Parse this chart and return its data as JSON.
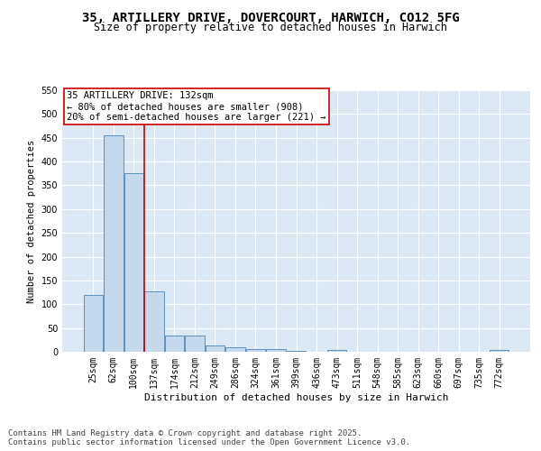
{
  "title1": "35, ARTILLERY DRIVE, DOVERCOURT, HARWICH, CO12 5FG",
  "title2": "Size of property relative to detached houses in Harwich",
  "xlabel": "Distribution of detached houses by size in Harwich",
  "ylabel": "Number of detached properties",
  "categories": [
    "25sqm",
    "62sqm",
    "100sqm",
    "137sqm",
    "174sqm",
    "212sqm",
    "249sqm",
    "286sqm",
    "324sqm",
    "361sqm",
    "399sqm",
    "436sqm",
    "473sqm",
    "511sqm",
    "548sqm",
    "585sqm",
    "623sqm",
    "660sqm",
    "697sqm",
    "735sqm",
    "772sqm"
  ],
  "values": [
    120,
    455,
    375,
    128,
    35,
    35,
    13,
    9,
    5,
    6,
    1,
    0,
    3,
    0,
    0,
    0,
    0,
    0,
    0,
    0,
    4
  ],
  "bar_color": "#c5d8ec",
  "bar_edge_color": "#4a86b8",
  "background_color": "#dce9f5",
  "grid_color": "#ffffff",
  "vline_x_index": 3,
  "vline_color": "#cc0000",
  "annotation_text": "35 ARTILLERY DRIVE: 132sqm\n← 80% of detached houses are smaller (908)\n20% of semi-detached houses are larger (221) →",
  "annotation_box_color": "#ffffff",
  "annotation_box_edge_color": "#cc0000",
  "ylim": [
    0,
    550
  ],
  "yticks": [
    0,
    50,
    100,
    150,
    200,
    250,
    300,
    350,
    400,
    450,
    500,
    550
  ],
  "footnote": "Contains HM Land Registry data © Crown copyright and database right 2025.\nContains public sector information licensed under the Open Government Licence v3.0.",
  "title1_fontsize": 10,
  "title2_fontsize": 8.5,
  "xlabel_fontsize": 8,
  "ylabel_fontsize": 7.5,
  "tick_fontsize": 7,
  "annotation_fontsize": 7.5,
  "footnote_fontsize": 6.5
}
